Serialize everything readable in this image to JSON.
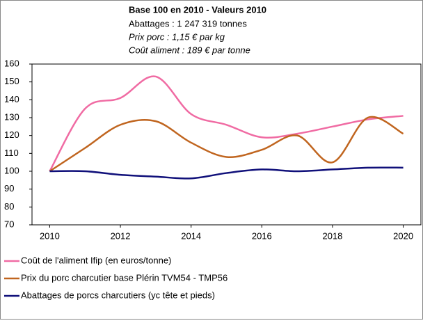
{
  "chart_data": {
    "type": "line",
    "title": "Base 100 en 2010 - Valeurs 2010",
    "subtitle": [
      "Abattages : 1 247 319 tonnes",
      "Prix porc : 1,15 € par kg",
      "Coût aliment : 189 € par tonne"
    ],
    "x": [
      2010,
      2011,
      2012,
      2013,
      2014,
      2015,
      2016,
      2017,
      2018,
      2019,
      2020
    ],
    "series": [
      {
        "name": "Coût de l'aliment Ifip (en euros/tonne)",
        "color": "#f06ba3",
        "values": [
          100,
          135,
          141,
          153,
          132,
          126,
          119,
          121,
          125,
          129,
          131
        ]
      },
      {
        "name": "Prix du porc charcutier base Plérin TVM54 - TMP56",
        "color": "#c0651f",
        "values": [
          100,
          113,
          126,
          128,
          116,
          108,
          112,
          120,
          105,
          130,
          121
        ]
      },
      {
        "name": "Abattages de porcs charcutiers (yc tête et pieds)",
        "color": "#10107a",
        "values": [
          100,
          100,
          98,
          97,
          96,
          99,
          101,
          100,
          101,
          102,
          102
        ]
      }
    ],
    "xlim": [
      2009.5,
      2020.5
    ],
    "xticks": [
      2010,
      2012,
      2014,
      2016,
      2018,
      2020
    ],
    "ylim": [
      70,
      160
    ],
    "yticks": [
      70,
      80,
      90,
      100,
      110,
      120,
      130,
      140,
      150,
      160
    ],
    "grid": false
  }
}
